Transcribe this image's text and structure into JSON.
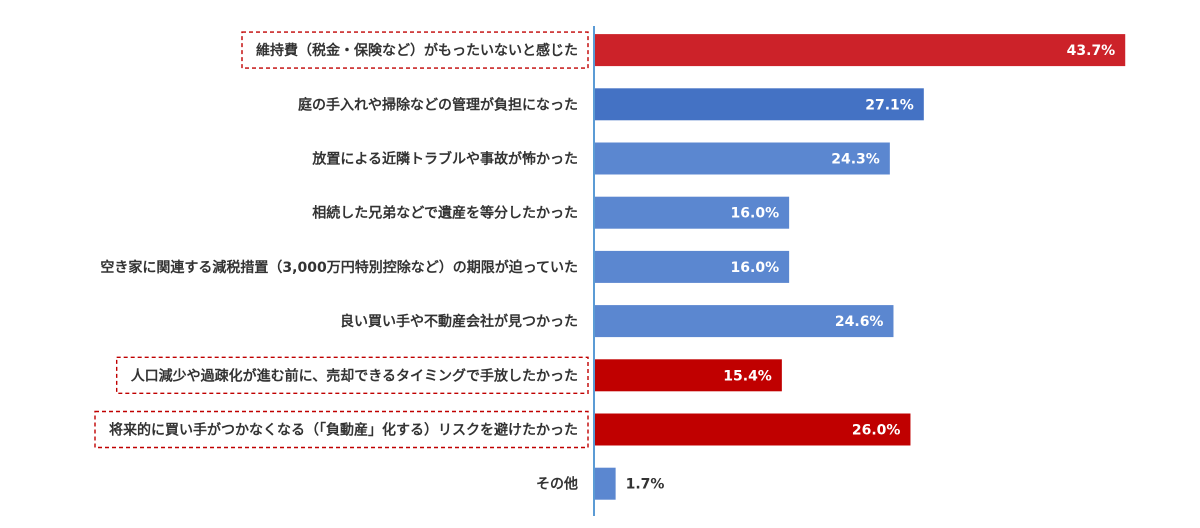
{
  "chart_data": {
    "type": "bar",
    "orientation": "horizontal",
    "categories": [
      "維持費（税金・保険など）がもったいないと感じた",
      "庭の手入れや掃除などの管理が負担になった",
      "放置による近隣トラブルや事故が怖かった",
      "相続した兄弟などで遺産を等分したかった",
      "空き家に関連する減税措置（3,000万円特別控除など）の期限が迫っていた",
      "良い買い手や不動産会社が見つかった",
      "人口減少や過疎化が進む前に、売却できるタイミングで手放したかった",
      "将来的に買い手がつかなくなる（「負動産」化する）リスクを避けたかった",
      "その他"
    ],
    "values": [
      43.7,
      27.1,
      24.3,
      16.0,
      16.0,
      24.6,
      15.4,
      26.0,
      1.7
    ],
    "value_labels": [
      "43.7%",
      "27.1%",
      "24.3%",
      "16.0%",
      "16.0%",
      "24.6%",
      "15.4%",
      "26.0%",
      "1.7%"
    ],
    "highlighted": [
      true,
      false,
      false,
      false,
      false,
      false,
      true,
      true,
      false
    ],
    "bar_colors": [
      "#cc2229",
      "#4472c4",
      "#5b87d0",
      "#5b87d0",
      "#5b87d0",
      "#5b87d0",
      "#c00000",
      "#c00000",
      "#5b87d0"
    ],
    "value_label_colors": [
      "#ffffff",
      "#ffffff",
      "#ffffff",
      "#ffffff",
      "#ffffff",
      "#ffffff",
      "#ffffff",
      "#ffffff",
      "#333333"
    ],
    "axis_color": "#5b9bd5",
    "highlight_box_color": "#c00000",
    "xlim": [
      0,
      45
    ],
    "grid": false,
    "legend": "none"
  }
}
